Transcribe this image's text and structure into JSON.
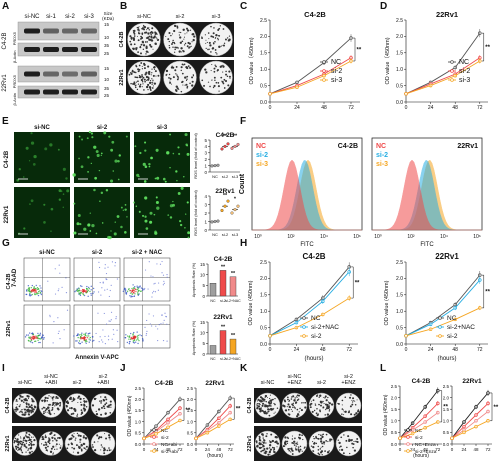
{
  "panel_letters": [
    "A",
    "B",
    "C",
    "D",
    "E",
    "F",
    "G",
    "H",
    "I",
    "J",
    "K",
    "L"
  ],
  "panelA": {
    "headers": [
      "si-NC",
      "si-1",
      "si-2",
      "si-3",
      "Size (KDa)"
    ],
    "row_groups": [
      "C4-2B",
      "22Rv1"
    ],
    "proteins": [
      "PRDX5",
      "β-Actin",
      "PRDX5",
      "β-Actin"
    ],
    "sizes": [
      "15",
      "10",
      "35",
      "25",
      "15",
      "10",
      "35",
      "25"
    ]
  },
  "panelB": {
    "headers": [
      "si-NC",
      "si-2",
      "si-3"
    ],
    "rows": [
      "C4-2B",
      "22Rv1"
    ]
  },
  "panelE": {
    "headers": [
      "si-NC",
      "si-2",
      "si-3"
    ],
    "rows": [
      "C4-2B",
      "22Rv1"
    ]
  },
  "panelF": {
    "xlabel": "FITC",
    "ylabel": "Count",
    "legend": [
      "NC",
      "si-2",
      "si-3"
    ],
    "colors": [
      "#ef4b4b",
      "#27aee3",
      "#f5a623"
    ]
  },
  "panelG": {
    "headers": [
      "si-NC",
      "si-2",
      "si-2 + NAC"
    ],
    "rows": [
      "C4-2B",
      "22Rv1"
    ],
    "xlabel": "Annexin V-APC",
    "ylabel": "7-AAD"
  },
  "panelI": {
    "headers": [
      "si-NC",
      "si-NC\n+ABI",
      "si-2",
      "si-2\n+ABI"
    ],
    "rows": [
      "C4-2B",
      "22Rv1"
    ]
  },
  "panelK": {
    "headers": [
      "si-NC",
      "si-NC\n+ENZ",
      "si-2",
      "si-2\n+ENZ"
    ],
    "rows": [
      "C4-2B",
      "22Rv1"
    ]
  },
  "chart_data": [
    {
      "id": "C",
      "type": "line",
      "title": "C4-2B",
      "xlabel": "",
      "ylabel": "OD value（450nm)",
      "x": [
        0,
        24,
        48,
        72
      ],
      "xlim": [
        0,
        80
      ],
      "ylim": [
        0,
        2.5
      ],
      "yticks": [
        0,
        0.5,
        1.0,
        1.5,
        2.0,
        2.5
      ],
      "significance": "**",
      "series": [
        {
          "name": "NC",
          "color": "#555555",
          "values": [
            0.25,
            0.6,
            1.2,
            1.95
          ]
        },
        {
          "name": "si-2",
          "color": "#ef4b4b",
          "values": [
            0.25,
            0.5,
            0.85,
            1.35
          ]
        },
        {
          "name": "si-3",
          "color": "#f5a623",
          "values": [
            0.25,
            0.45,
            0.8,
            1.25
          ]
        }
      ]
    },
    {
      "id": "D",
      "type": "line",
      "title": "22Rv1",
      "xlabel": "",
      "ylabel": "OD value（450nm)",
      "x": [
        0,
        24,
        48,
        72
      ],
      "xlim": [
        0,
        80
      ],
      "ylim": [
        0,
        2.5
      ],
      "yticks": [
        0,
        0.5,
        1.0,
        1.5,
        2.0,
        2.5
      ],
      "significance": "**",
      "series": [
        {
          "name": "NC",
          "color": "#555555",
          "values": [
            0.25,
            0.6,
            1.05,
            2.1
          ]
        },
        {
          "name": "si-2",
          "color": "#ef4b4b",
          "values": [
            0.25,
            0.55,
            0.85,
            1.35
          ]
        },
        {
          "name": "si-3",
          "color": "#f5a623",
          "values": [
            0.25,
            0.5,
            0.8,
            1.25
          ]
        }
      ]
    },
    {
      "id": "E1",
      "type": "scatter-bar",
      "title": "C4-2B",
      "ylabel": "ROS level (fold of control)",
      "categories": [
        "NC",
        "si-2",
        "si-3"
      ],
      "ylim": [
        0,
        5
      ],
      "yticks": [
        0,
        1,
        2,
        3,
        4,
        5
      ],
      "significance": [
        "",
        "**",
        "**"
      ],
      "bars": [
        1.0,
        4.0,
        4.0
      ],
      "points": [
        [
          0.95,
          1.0,
          1.05
        ],
        [
          3.6,
          4.0,
          4.4
        ],
        [
          3.7,
          4.0,
          4.3
        ]
      ],
      "colors": [
        "#9e9e9e",
        "#ef4b4b",
        "#f08a8a"
      ]
    },
    {
      "id": "E2",
      "type": "scatter-bar",
      "title": "22Rv1",
      "ylabel": "ROS level (fold of control)",
      "categories": [
        "NC",
        "si-2",
        "si-3"
      ],
      "ylim": [
        0,
        4
      ],
      "yticks": [
        0,
        1,
        2,
        3,
        4
      ],
      "significance": [
        "",
        "**",
        "*"
      ],
      "bars": [
        1.0,
        2.8,
        2.4
      ],
      "points": [
        [
          0.95,
          1.0,
          1.05
        ],
        [
          2.3,
          2.8,
          3.4
        ],
        [
          2.0,
          2.4,
          2.8
        ]
      ],
      "colors": [
        "#9e9e9e",
        "#f5a623",
        "#f7c27a"
      ]
    },
    {
      "id": "G1",
      "type": "bar",
      "title": "C4-2B",
      "ylabel": "Apoptosis Rate (%)",
      "categories": [
        "NC",
        "si-2",
        "si-2+NAC"
      ],
      "ylim": [
        0,
        15
      ],
      "yticks": [
        0,
        5,
        10,
        15
      ],
      "significance": [
        "",
        "**",
        "**"
      ],
      "values": [
        6,
        12,
        9
      ],
      "colors": [
        "#9e9e9e",
        "#ef4b4b",
        "#f08a8a"
      ]
    },
    {
      "id": "G2",
      "type": "bar",
      "title": "22Rv1",
      "ylabel": "Apoptosis Rate (%)",
      "categories": [
        "NC",
        "si-2",
        "si-2+NAC"
      ],
      "ylim": [
        0,
        15
      ],
      "yticks": [
        0,
        5,
        10,
        15
      ],
      "significance": [
        "",
        "**",
        "**"
      ],
      "values": [
        4,
        11,
        7
      ],
      "colors": [
        "#9e9e9e",
        "#ef4b4b",
        "#f5a623"
      ]
    },
    {
      "id": "H1",
      "type": "line",
      "title": "C4-2B",
      "xlabel": "(hours)",
      "ylabel": "OD value (450nm)",
      "x": [
        0,
        24,
        48,
        72
      ],
      "xlim": [
        0,
        80
      ],
      "ylim": [
        0,
        2.5
      ],
      "yticks": [
        0,
        0.5,
        1.0,
        1.5,
        2.0,
        2.5
      ],
      "significance": "**",
      "series": [
        {
          "name": "NC",
          "color": "#555555",
          "values": [
            0.25,
            0.75,
            1.4,
            2.35
          ]
        },
        {
          "name": "si-2+NAC",
          "color": "#27aee3",
          "values": [
            0.25,
            0.65,
            1.3,
            2.2
          ]
        },
        {
          "name": "si-2",
          "color": "#f5a623",
          "values": [
            0.25,
            0.5,
            0.9,
            1.4
          ]
        }
      ]
    },
    {
      "id": "H2",
      "type": "line",
      "title": "22Rv1",
      "xlabel": "(hours)",
      "ylabel": "OD value (450nm)",
      "x": [
        0,
        24,
        48,
        72
      ],
      "xlim": [
        0,
        80
      ],
      "ylim": [
        0,
        2.5
      ],
      "yticks": [
        0,
        0.5,
        1.0,
        1.5,
        2.0,
        2.5
      ],
      "significance": "**",
      "series": [
        {
          "name": "NC",
          "color": "#555555",
          "values": [
            0.25,
            0.65,
            1.2,
            2.1
          ]
        },
        {
          "name": "si-2+NAC",
          "color": "#27aee3",
          "values": [
            0.25,
            0.6,
            1.1,
            1.95
          ]
        },
        {
          "name": "si-2",
          "color": "#f5a623",
          "values": [
            0.25,
            0.45,
            0.75,
            1.1
          ]
        }
      ]
    },
    {
      "id": "J1",
      "type": "line",
      "title": "C4-2B",
      "xlabel": "",
      "ylabel": "OD value (450nm)",
      "x": [
        0,
        24,
        48,
        72
      ],
      "xlim": [
        0,
        80
      ],
      "ylim": [
        0,
        2.5
      ],
      "yticks": [
        0,
        0.5,
        1.0,
        1.5,
        2.0,
        2.5
      ],
      "significance": "**",
      "series": [
        {
          "name": "NC",
          "color": "#555555",
          "values": [
            0.25,
            0.8,
            1.4,
            2.0
          ]
        },
        {
          "name": "si-2",
          "color": "#ef4b4b",
          "values": [
            0.25,
            0.6,
            1.1,
            1.6
          ]
        },
        {
          "name": "NC+abi",
          "color": "#f08a8a",
          "values": [
            0.25,
            0.55,
            0.95,
            1.35
          ]
        },
        {
          "name": "si-2+abi",
          "color": "#f5a623",
          "values": [
            0.25,
            0.45,
            0.75,
            1.05
          ]
        }
      ]
    },
    {
      "id": "J2",
      "type": "line",
      "title": "22Rv1",
      "xlabel": "(hours)",
      "ylabel": "",
      "x": [
        0,
        24,
        48,
        72
      ],
      "xlim": [
        0,
        80
      ],
      "ylim": [
        0,
        2.5
      ],
      "yticks": [
        0,
        0.5,
        1.0,
        1.5,
        2.0,
        2.5
      ],
      "significance": "**",
      "series": [
        {
          "name": "NC",
          "color": "#555555",
          "values": [
            0.25,
            0.85,
            1.45,
            2.05
          ]
        },
        {
          "name": "si-2",
          "color": "#ef4b4b",
          "values": [
            0.25,
            0.65,
            1.15,
            1.7
          ]
        },
        {
          "name": "NC+abi",
          "color": "#f08a8a",
          "values": [
            0.25,
            0.6,
            0.95,
            1.4
          ]
        },
        {
          "name": "si-2+abi",
          "color": "#f5a623",
          "values": [
            0.25,
            0.5,
            0.8,
            1.1
          ]
        }
      ]
    },
    {
      "id": "L1",
      "type": "line",
      "title": "C4-2B",
      "xlabel": "(hours)",
      "ylabel": "OD value (450nm)",
      "x": [
        0,
        24,
        48,
        72
      ],
      "xlim": [
        0,
        80
      ],
      "ylim": [
        0,
        2.5
      ],
      "yticks": [
        0,
        0.5,
        1.0,
        1.5,
        2.0,
        2.5
      ],
      "significance": "**",
      "series": [
        {
          "name": "NC",
          "color": "#222222",
          "values": [
            0.25,
            0.9,
            1.6,
            2.3
          ]
        },
        {
          "name": "si-2",
          "color": "#ef4b4b",
          "values": [
            0.25,
            0.7,
            1.2,
            1.75
          ]
        },
        {
          "name": "NC+Enza",
          "color": "#f08a8a",
          "values": [
            0.25,
            0.6,
            0.95,
            1.35
          ]
        },
        {
          "name": "si-2+Enza",
          "color": "#f5a623",
          "values": [
            0.25,
            0.45,
            0.7,
            0.95
          ]
        }
      ]
    },
    {
      "id": "L2",
      "type": "line",
      "title": "22Rv1",
      "xlabel": "",
      "ylabel": "",
      "x": [
        0,
        24,
        48,
        72
      ],
      "xlim": [
        0,
        80
      ],
      "ylim": [
        0,
        2.5
      ],
      "yticks": [
        0,
        0.5,
        1.0,
        1.5,
        2.0,
        2.5
      ],
      "significance": "**",
      "series": [
        {
          "name": "NC",
          "color": "#222222",
          "values": [
            0.25,
            0.95,
            1.6,
            2.2
          ]
        },
        {
          "name": "si-2",
          "color": "#ef4b4b",
          "values": [
            0.25,
            0.75,
            1.25,
            1.75
          ]
        },
        {
          "name": "NC+Enza",
          "color": "#f08a8a",
          "values": [
            0.25,
            0.6,
            1.0,
            1.4
          ]
        },
        {
          "name": "si-2+Enza",
          "color": "#f5a623",
          "values": [
            0.25,
            0.5,
            0.75,
            1.0
          ]
        }
      ]
    }
  ]
}
